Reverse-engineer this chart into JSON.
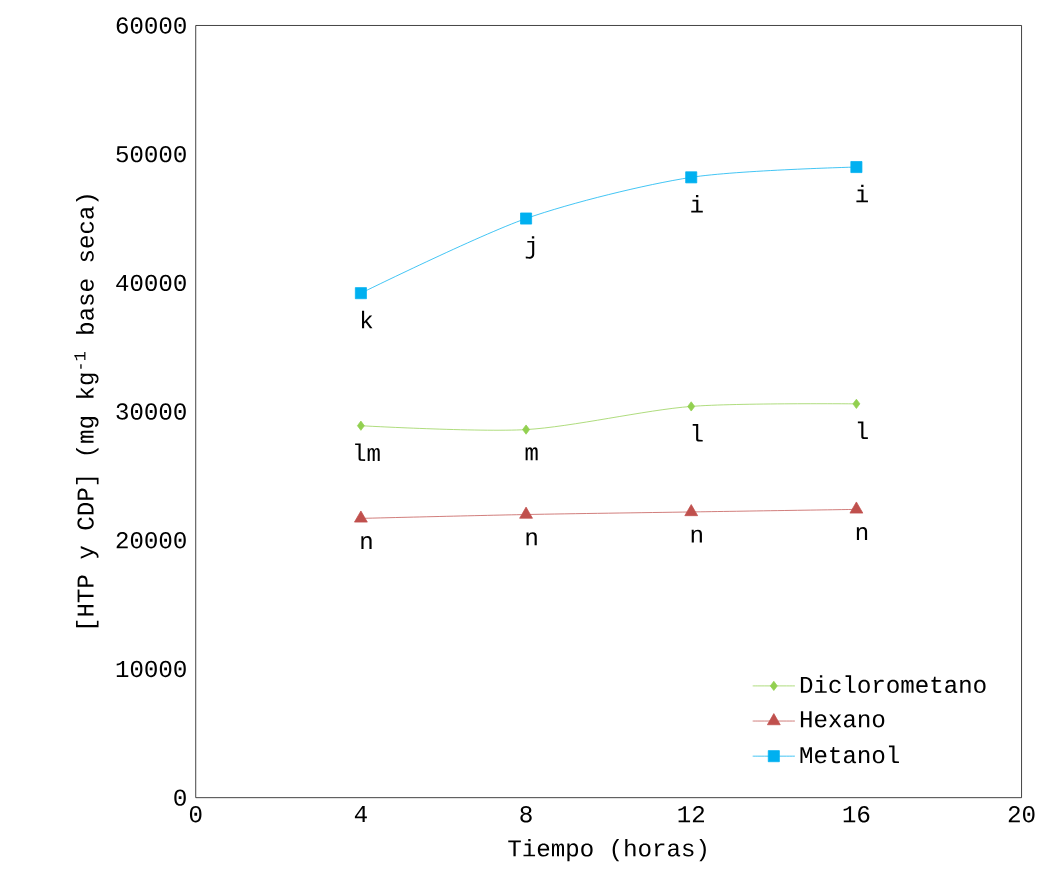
{
  "chart_data": {
    "type": "line",
    "xlabel": "Tiempo (horas)",
    "ylabel": "[HTP y CDP] (mg kg$^{-1}$ base seca)",
    "x": [
      4,
      8,
      12,
      16
    ],
    "series": [
      {
        "name": "Diclorometano",
        "color": "#92d050",
        "marker": "diamond",
        "values": [
          28900,
          28600,
          30400,
          30600
        ]
      },
      {
        "name": "Hexano",
        "color": "#c0504d",
        "marker": "triangle",
        "values": [
          21700,
          22000,
          22200,
          22400
        ]
      },
      {
        "name": "Metanol",
        "color": "#00b0f0",
        "marker": "square",
        "values": [
          39200,
          45000,
          48200,
          49000
        ]
      }
    ],
    "xlim": [
      0,
      20
    ],
    "xticks": [
      0,
      4,
      8,
      12,
      16,
      20
    ],
    "ylim": [
      0,
      60000
    ],
    "yticks": [
      0,
      10000,
      20000,
      30000,
      40000,
      50000,
      60000
    ],
    "grid": false,
    "legend": "bottom right",
    "annotations": [
      {
        "text": "lm",
        "x": 4,
        "y": 28900
      },
      {
        "text": "m",
        "x": 8,
        "y": 28600
      },
      {
        "text": "l",
        "x": 12,
        "y": 30400
      },
      {
        "text": "l",
        "x": 16,
        "y": 30600
      },
      {
        "text": "n",
        "x": 4,
        "y": 21700
      },
      {
        "text": "n",
        "x": 8,
        "y": 22000
      },
      {
        "text": "n",
        "x": 12,
        "y": 22200
      },
      {
        "text": "n",
        "x": 16,
        "y": 22400
      },
      {
        "text": "k",
        "x": 4,
        "y": 39200
      },
      {
        "text": "j",
        "x": 8,
        "y": 45000
      },
      {
        "text": "i",
        "x": 12,
        "y": 48200
      },
      {
        "text": "i",
        "x": 16,
        "y": 49000
      }
    ]
  }
}
